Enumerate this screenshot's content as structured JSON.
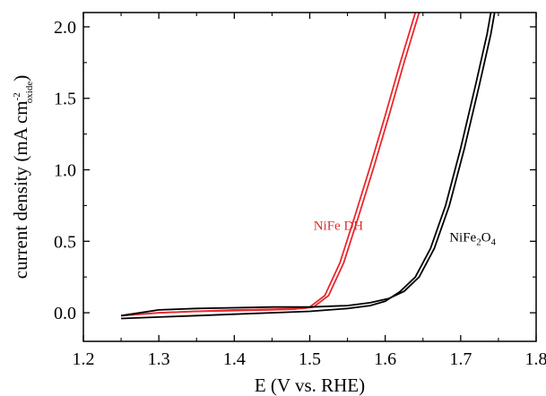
{
  "chart_data": {
    "type": "line",
    "title": "",
    "xlabel": "E (V vs. RHE)",
    "ylabel": {
      "main": "current density (mA cm",
      "sup": "-2",
      "sub": "oxide",
      "close": ")"
    },
    "xlim": [
      1.2,
      1.8
    ],
    "ylim": [
      -0.2,
      2.1
    ],
    "x_ticks": [
      1.2,
      1.3,
      1.4,
      1.5,
      1.6,
      1.7,
      1.8
    ],
    "y_ticks": [
      0.0,
      0.5,
      1.0,
      1.5,
      2.0
    ],
    "x_tick_labels": [
      "1.2",
      "1.3",
      "1.4",
      "1.5",
      "1.6",
      "1.7",
      "1.8"
    ],
    "y_tick_labels": [
      "0.0",
      "0.5",
      "1.0",
      "1.5",
      "2.0"
    ],
    "grid": false,
    "series": [
      {
        "label_parts": [
          {
            "text": "NiFe DH"
          }
        ],
        "color": "#e8282d",
        "forward": {
          "x": [
            1.25,
            1.3,
            1.35,
            1.4,
            1.45,
            1.48,
            1.5,
            1.52,
            1.54,
            1.56,
            1.58,
            1.6,
            1.62,
            1.64
          ],
          "y": [
            -0.02,
            0.0,
            0.01,
            0.015,
            0.02,
            0.025,
            0.04,
            0.12,
            0.35,
            0.68,
            1.02,
            1.38,
            1.75,
            2.1
          ]
        },
        "reverse": {
          "x": [
            1.645,
            1.625,
            1.605,
            1.585,
            1.565,
            1.545,
            1.525,
            1.505,
            1.49,
            1.45,
            1.4,
            1.35,
            1.3,
            1.25
          ],
          "y": [
            2.1,
            1.75,
            1.38,
            1.02,
            0.68,
            0.35,
            0.12,
            0.04,
            0.03,
            0.025,
            0.02,
            0.01,
            0.0,
            -0.02
          ]
        }
      },
      {
        "label_parts": [
          {
            "text": "NiFe"
          },
          {
            "text": "2",
            "sub": true
          },
          {
            "text": "O"
          },
          {
            "text": "4",
            "sub": true
          }
        ],
        "color": "#000000",
        "forward": {
          "x": [
            1.25,
            1.3,
            1.35,
            1.4,
            1.45,
            1.5,
            1.55,
            1.58,
            1.6,
            1.62,
            1.64,
            1.66,
            1.68,
            1.7,
            1.72,
            1.735,
            1.74
          ],
          "y": [
            -0.04,
            -0.03,
            -0.02,
            -0.01,
            0.0,
            0.01,
            0.03,
            0.05,
            0.08,
            0.15,
            0.25,
            0.45,
            0.75,
            1.15,
            1.6,
            1.95,
            2.1
          ]
        },
        "reverse": {
          "x": [
            1.745,
            1.74,
            1.725,
            1.705,
            1.685,
            1.665,
            1.645,
            1.625,
            1.605,
            1.58,
            1.55,
            1.5,
            1.45,
            1.4,
            1.35,
            1.3,
            1.25
          ],
          "y": [
            2.1,
            1.95,
            1.6,
            1.15,
            0.75,
            0.45,
            0.25,
            0.15,
            0.1,
            0.07,
            0.05,
            0.04,
            0.04,
            0.035,
            0.03,
            0.02,
            -0.02
          ]
        }
      }
    ]
  }
}
